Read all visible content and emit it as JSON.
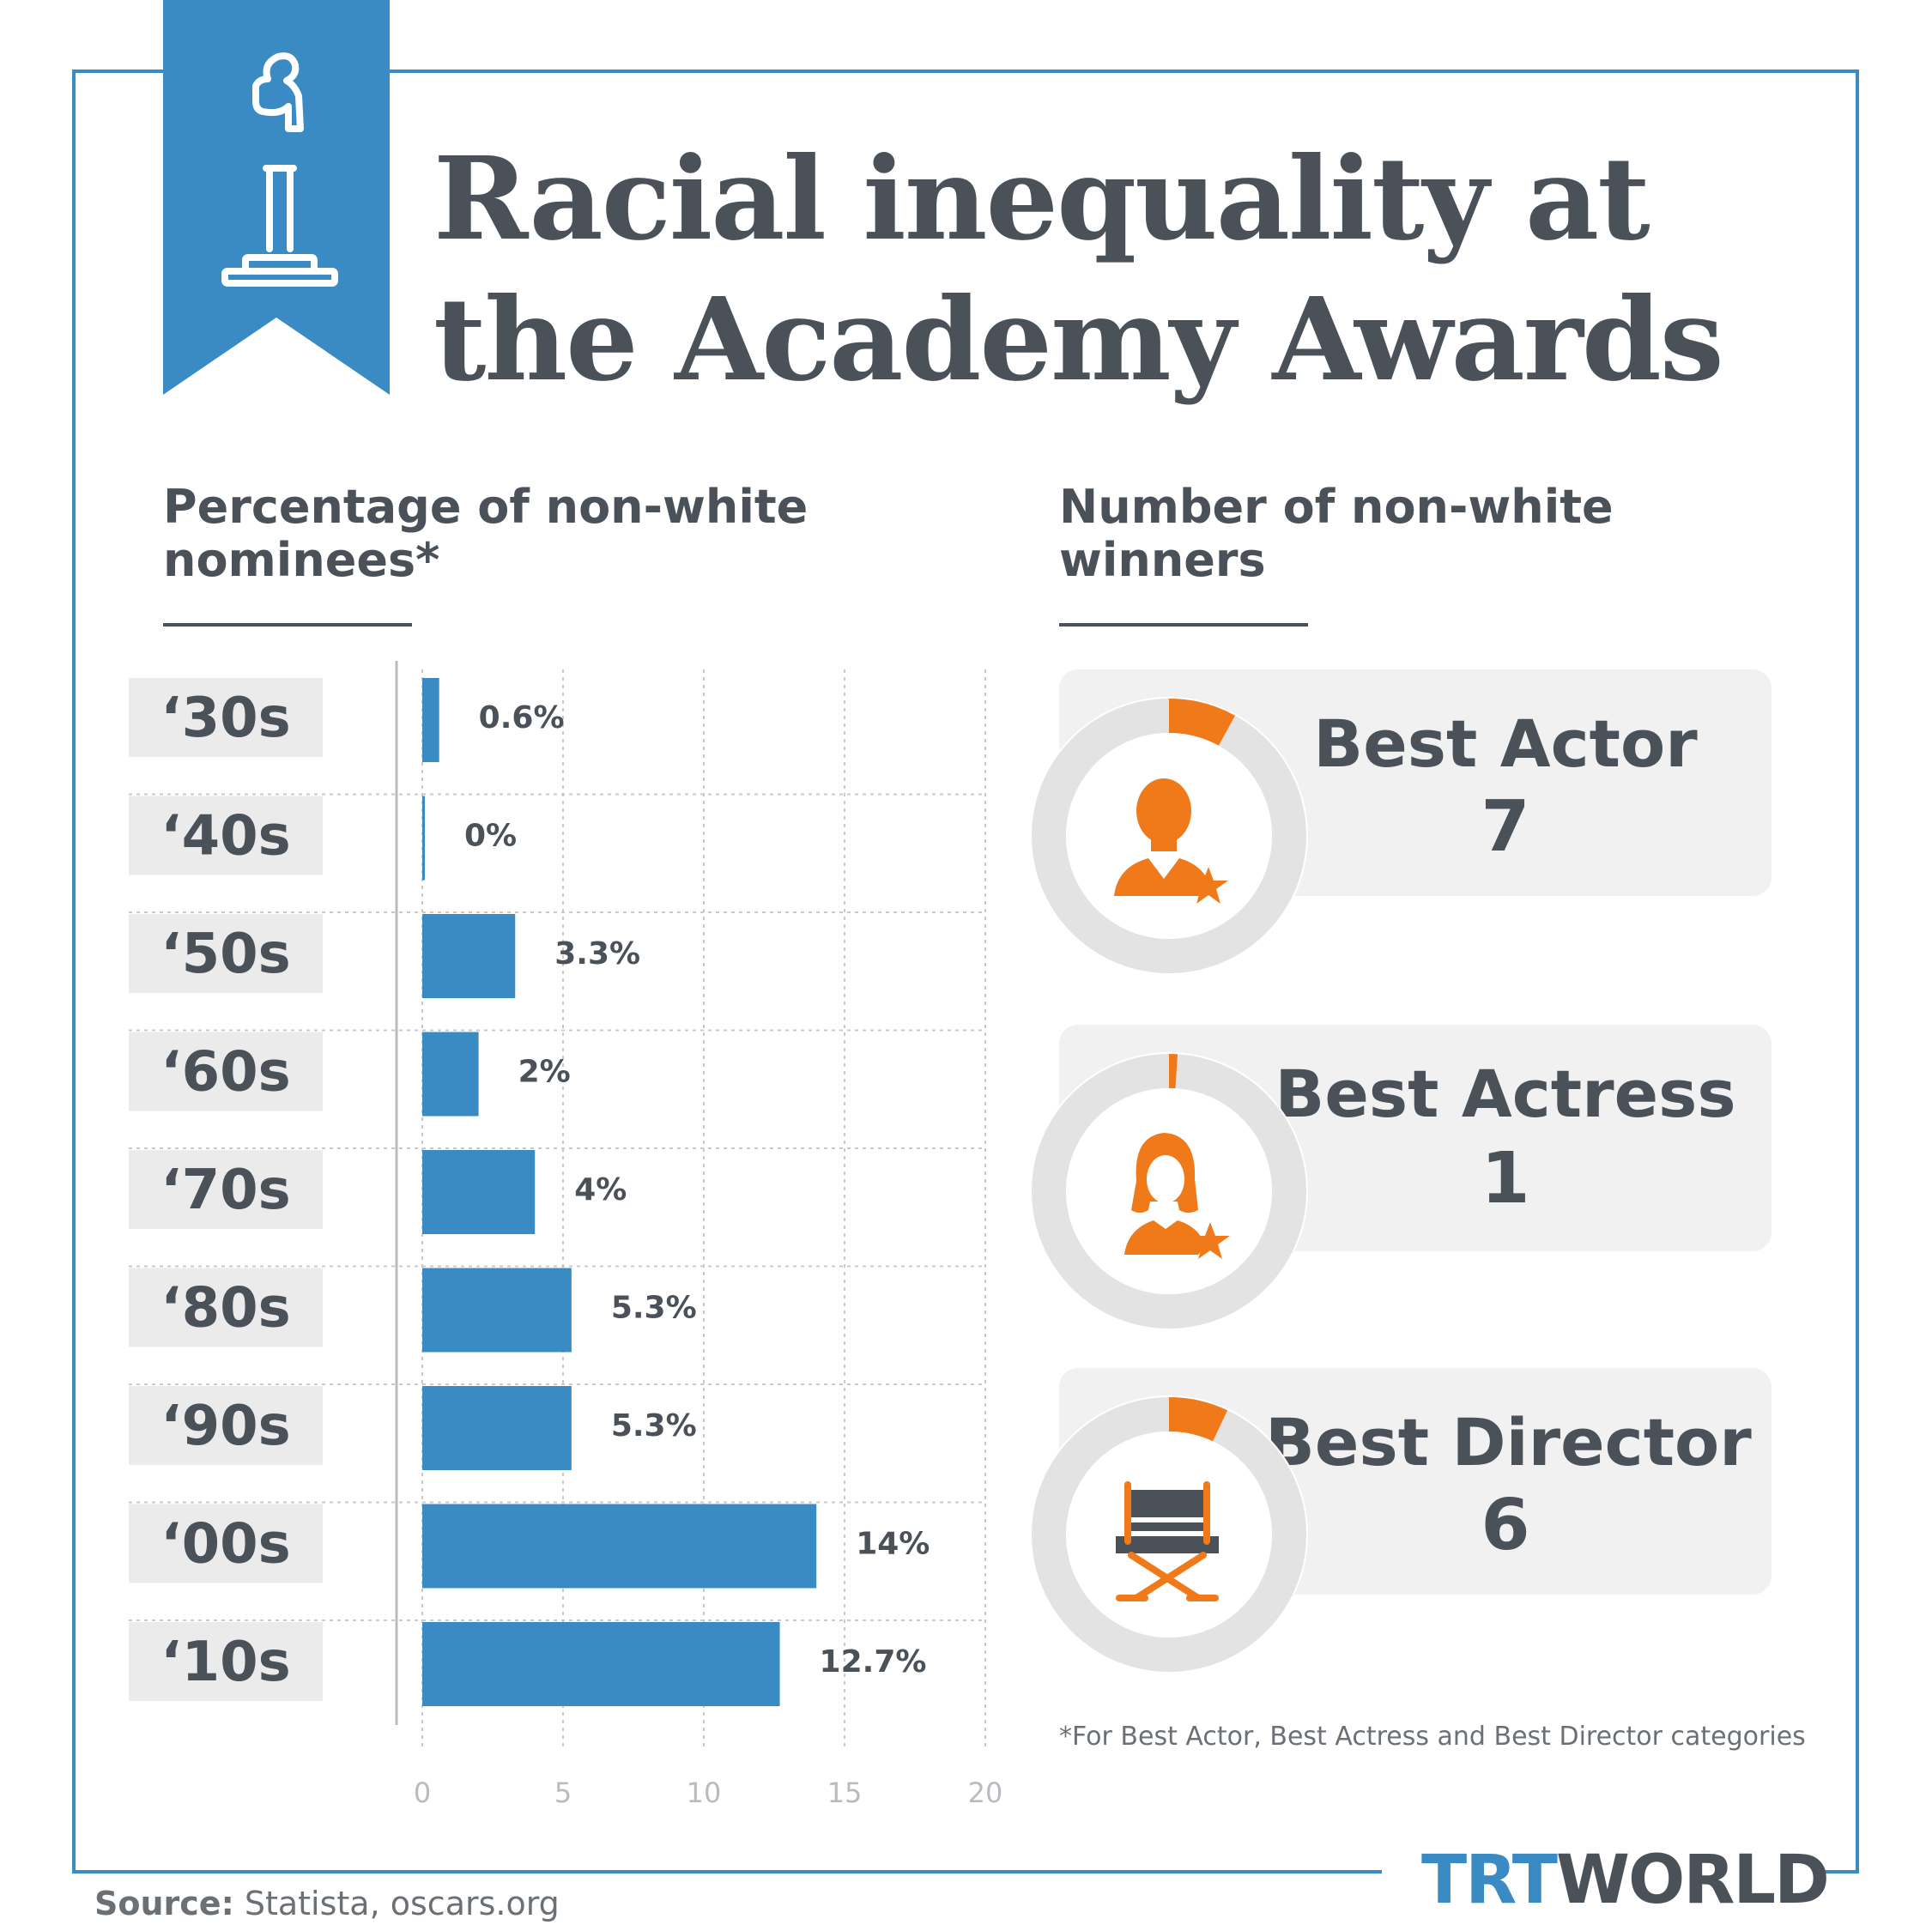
{
  "title": {
    "line1": "Racial inequality at",
    "line2": "the Academy Awards"
  },
  "left_heading": {
    "line1": "Percentage of non-white",
    "line2": "nominees*"
  },
  "right_heading": {
    "line1": "Number of non-white",
    "line2": "winners"
  },
  "chart_data": {
    "type": "bar",
    "orientation": "horizontal",
    "categories": [
      "‘30s",
      "‘40s",
      "‘50s",
      "‘60s",
      "‘70s",
      "‘80s",
      "‘90s",
      "‘00s",
      "‘10s"
    ],
    "values": [
      0.6,
      0,
      3.3,
      2,
      4,
      5.3,
      5.3,
      14,
      12.7
    ],
    "value_labels": [
      "0.6%",
      "0%",
      "3.3%",
      "2%",
      "4%",
      "5.3%",
      "5.3%",
      "14%",
      "12.7%"
    ],
    "xlim": [
      0,
      20
    ],
    "xticks": [
      "0",
      "5",
      "10",
      "15",
      "20"
    ],
    "grid": true,
    "bar_color": "#3a8bc4"
  },
  "awards": [
    {
      "name": "Best Actor",
      "count": "7",
      "icon": "actor-icon",
      "fraction": 0.08
    },
    {
      "name": "Best Actress",
      "count": "1",
      "icon": "actress-icon",
      "fraction": 0.01
    },
    {
      "name": "Best Director",
      "count": "6",
      "icon": "director-chair-icon",
      "fraction": 0.07
    }
  ],
  "colors": {
    "accent": "#3a8bc4",
    "text": "#4a5159",
    "highlight": "#f07a1a",
    "ring": "#e3e3e3",
    "label_bg": "#ebebeb"
  },
  "footnote": "*For Best Actor, Best Actress and Best Director categories",
  "source": {
    "label": "Source:",
    "text": " Statista, oscars.org"
  },
  "logo": {
    "part1": "TRT",
    "part2": "WORLD"
  }
}
